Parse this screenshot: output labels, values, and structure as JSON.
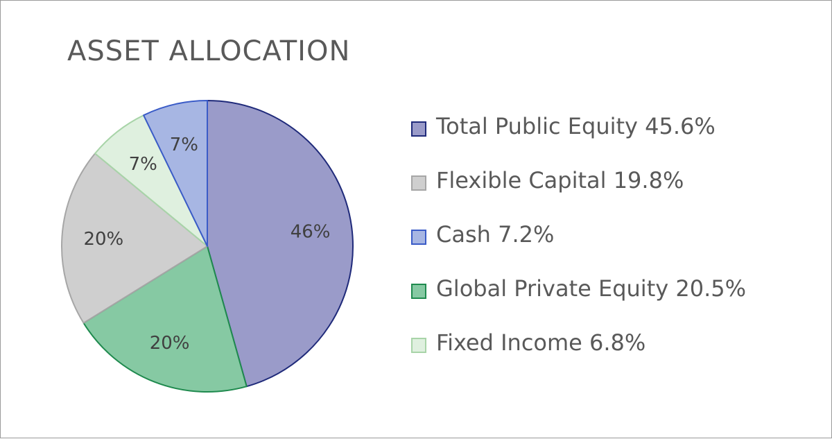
{
  "chart_data": {
    "type": "pie",
    "title": "ASSET ALLOCATION",
    "start_angle_deg": 0,
    "direction": "clockwise",
    "slices": [
      {
        "name": "Total Public Equity",
        "value": 45.6,
        "pie_label": "46%",
        "legend_label": "Total Public Equity 45.6%",
        "fill": "#9a9bc9",
        "stroke": "#1f2a7a"
      },
      {
        "name": "Global Private Equity",
        "value": 20.5,
        "pie_label": "20%",
        "legend_label": "Global Private Equity 20.5%",
        "fill": "#86c9a3",
        "stroke": "#1f8a4e"
      },
      {
        "name": "Flexible Capital",
        "value": 19.8,
        "pie_label": "20%",
        "legend_label": "Flexible Capital 19.8%",
        "fill": "#cfcfcf",
        "stroke": "#a6a6a6"
      },
      {
        "name": "Fixed Income",
        "value": 6.8,
        "pie_label": "7%",
        "legend_label": "Fixed Income 6.8%",
        "fill": "#dff0df",
        "stroke": "#a8d4a8"
      },
      {
        "name": "Cash",
        "value": 7.2,
        "pie_label": "7%",
        "legend_label": "Cash 7.2%",
        "fill": "#a7b6e3",
        "stroke": "#3a5bc7"
      }
    ],
    "legend": {
      "position": "right",
      "order": [
        "Total Public Equity",
        "Flexible Capital",
        "Cash",
        "Global Private Equity",
        "Fixed Income"
      ]
    }
  }
}
